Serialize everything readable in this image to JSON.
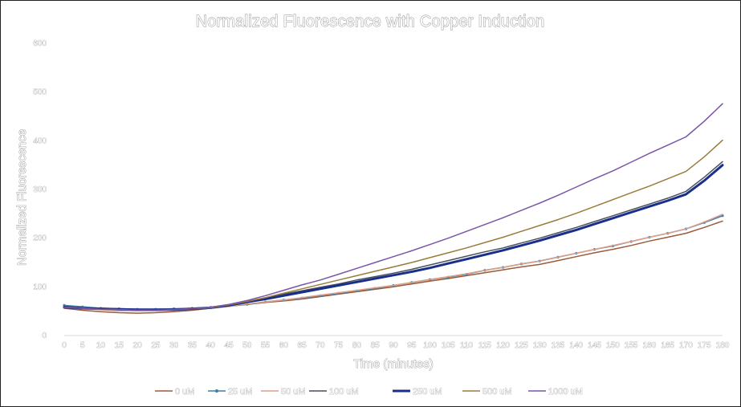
{
  "chart_data": {
    "type": "line",
    "title": "Normalized Fluorescence with Copper Induction",
    "xlabel": "Time (minutes)",
    "ylabel": "Normalized  Fluorescence",
    "ylim": [
      0,
      600
    ],
    "yticks": [
      0,
      100,
      200,
      300,
      400,
      500,
      600
    ],
    "grid": false,
    "legend_position": "bottom",
    "x": [
      0,
      5,
      10,
      15,
      20,
      25,
      30,
      35,
      40,
      45,
      50,
      55,
      60,
      65,
      70,
      75,
      80,
      85,
      90,
      95,
      100,
      105,
      110,
      115,
      120,
      125,
      130,
      135,
      140,
      145,
      150,
      155,
      160,
      165,
      170,
      175,
      180
    ],
    "series": [
      {
        "name": "0 uM",
        "color": "#9c5a38",
        "width": 1.5,
        "values": [
          56,
          52,
          49,
          47,
          46,
          47,
          49,
          52,
          56,
          60,
          64,
          68,
          71,
          75,
          80,
          85,
          90,
          95,
          100,
          106,
          112,
          117,
          123,
          129,
          135,
          141,
          146,
          154,
          162,
          170,
          177,
          185,
          194,
          202,
          210,
          222,
          235
        ]
      },
      {
        "name": "25 uM",
        "color": "#3f7fa8",
        "width": 1.6,
        "markers": true,
        "values": [
          62,
          59,
          56,
          55,
          54,
          54,
          55,
          56,
          58,
          61,
          64,
          69,
          73,
          77,
          82,
          87,
          92,
          97,
          103,
          109,
          115,
          120,
          126,
          134,
          140,
          147,
          153,
          161,
          169,
          177,
          184,
          193,
          202,
          210,
          219,
          232,
          246
        ]
      },
      {
        "name": "50 uM",
        "color": "#e0a088",
        "width": 1.5,
        "values": [
          58,
          55,
          53,
          51,
          51,
          51,
          52,
          54,
          57,
          60,
          65,
          69,
          73,
          78,
          83,
          88,
          93,
          98,
          103,
          109,
          115,
          121,
          127,
          134,
          140,
          147,
          153,
          161,
          169,
          177,
          185,
          193,
          202,
          210,
          219,
          233,
          249
        ]
      },
      {
        "name": "100 uM",
        "color": "#4a4f5c",
        "width": 1.5,
        "values": [
          60,
          57,
          55,
          54,
          53,
          53,
          53,
          55,
          57,
          63,
          70,
          77,
          85,
          92,
          99,
          106,
          114,
          121,
          128,
          136,
          145,
          154,
          163,
          172,
          180,
          190,
          200,
          211,
          222,
          234,
          246,
          258,
          270,
          282,
          296,
          325,
          357
        ]
      },
      {
        "name": "250 uM",
        "color": "#1a2f8c",
        "width": 3,
        "values": [
          58,
          56,
          55,
          54,
          53,
          53,
          53,
          55,
          57,
          62,
          69,
          75,
          82,
          89,
          96,
          103,
          110,
          117,
          124,
          131,
          139,
          148,
          157,
          166,
          175,
          185,
          195,
          206,
          217,
          229,
          241,
          253,
          265,
          277,
          290,
          318,
          350
        ]
      },
      {
        "name": "500 uM",
        "color": "#9a7c3a",
        "width": 1.5,
        "values": [
          58,
          56,
          54,
          53,
          52,
          52,
          53,
          55,
          57,
          63,
          70,
          78,
          87,
          96,
          105,
          114,
          123,
          132,
          141,
          150,
          160,
          170,
          180,
          191,
          202,
          214,
          226,
          238,
          251,
          265,
          279,
          293,
          307,
          322,
          337,
          367,
          401
        ]
      },
      {
        "name": "1000 uM",
        "color": "#7a55a8",
        "width": 1.5,
        "values": [
          58,
          56,
          54,
          53,
          52,
          52,
          53,
          55,
          58,
          64,
          72,
          82,
          93,
          104,
          114,
          126,
          138,
          150,
          162,
          174,
          187,
          200,
          214,
          228,
          242,
          257,
          272,
          288,
          305,
          322,
          338,
          356,
          374,
          391,
          408,
          440,
          476
        ]
      }
    ]
  }
}
